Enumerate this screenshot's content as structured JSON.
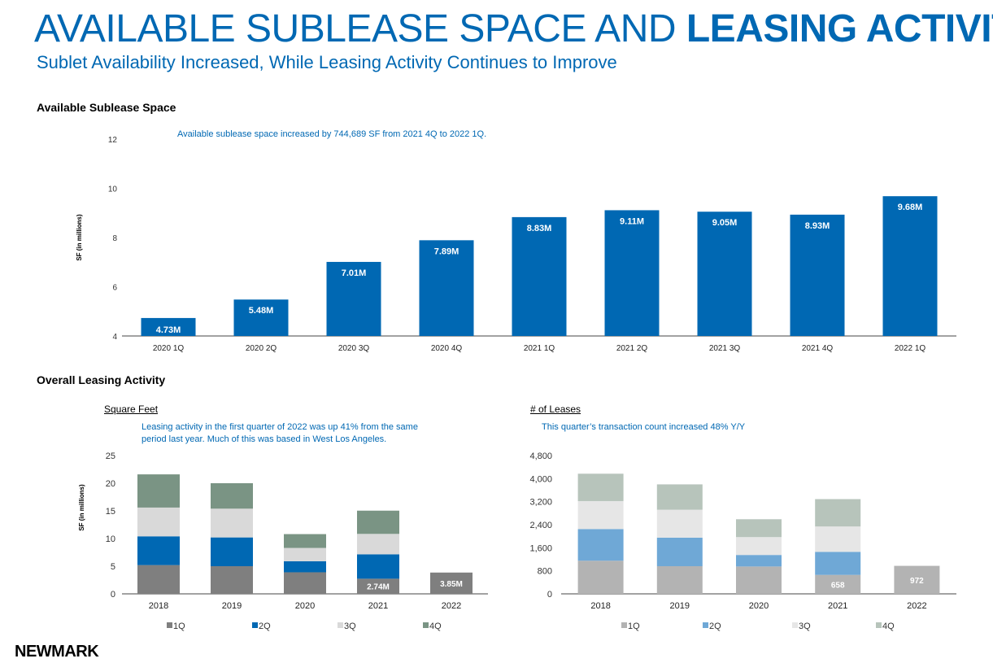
{
  "header": {
    "title_regular": "AVAILABLE SUBLEASE SPACE AND ",
    "title_bold": "LEASING ACTIVITY",
    "subtitle": "Sublet Availability Increased, While Leasing Activity Continues to Improve"
  },
  "sections": {
    "sublease_title": "Available Sublease Space",
    "leasing_title": "Overall Leasing Activity",
    "sqft_label": "Square Feet",
    "leases_label": "# of Leases"
  },
  "notes": {
    "sublease": "Available sublease space increased by 744,689 SF from 2021 4Q to 2022 1Q.",
    "sqft": "Leasing activity in the first quarter of 2022 was up 41% from the same period last year. Much of this was based in West Los Angeles.",
    "leases": "This quarter’s transaction count increased 48% Y/Y"
  },
  "logo": "NEWMARK",
  "chart_data": [
    {
      "type": "bar",
      "id": "sublease",
      "title": "Available Sublease Space",
      "ylabel": "SF (in millions)",
      "ylim": [
        4,
        12
      ],
      "yticks": [
        4,
        6,
        8,
        10,
        12
      ],
      "ytick_labels": [
        "4",
        "6",
        "8",
        "10",
        "12"
      ],
      "categories": [
        "2020 1Q",
        "2020 2Q",
        "2020 3Q",
        "2020 4Q",
        "2021 1Q",
        "2021 2Q",
        "2021 3Q",
        "2021 4Q",
        "2022 1Q"
      ],
      "values": [
        4.73,
        5.48,
        7.01,
        7.89,
        8.83,
        9.11,
        9.05,
        8.93,
        9.68
      ],
      "data_labels": [
        "4.73M",
        "5.48M",
        "7.01M",
        "7.89M",
        "8.83M",
        "9.11M",
        "9.05M",
        "8.93M",
        "9.68M"
      ],
      "color": "#0068b3",
      "grid": false
    },
    {
      "type": "bar",
      "stacked": true,
      "id": "sqft",
      "title": "Square Feet",
      "ylabel": "SF (in millions)",
      "ylim": [
        0,
        25
      ],
      "yticks": [
        0,
        5,
        10,
        15,
        20,
        25
      ],
      "ytick_labels": [
        "0",
        "5",
        "10",
        "15",
        "20",
        "25"
      ],
      "categories": [
        "2018",
        "2019",
        "2020",
        "2021",
        "2022"
      ],
      "series": [
        {
          "name": "1Q",
          "color": "#7f7f7f",
          "values": [
            5.2,
            5.0,
            3.9,
            2.74,
            3.85
          ]
        },
        {
          "name": "2Q",
          "color": "#0068b3",
          "values": [
            5.2,
            5.2,
            2.0,
            4.4,
            0
          ]
        },
        {
          "name": "3Q",
          "color": "#d9d9d9",
          "values": [
            5.2,
            5.2,
            2.4,
            3.7,
            0
          ]
        },
        {
          "name": "4Q",
          "color": "#7a9484",
          "values": [
            6.0,
            4.6,
            2.5,
            4.2,
            0
          ]
        }
      ],
      "data_labels": [
        {
          "category": 3,
          "series": 0,
          "text": "2.74M"
        },
        {
          "category": 4,
          "series": 0,
          "text": "3.85M"
        }
      ],
      "legend_position": "bottom",
      "grid": false
    },
    {
      "type": "bar",
      "stacked": true,
      "id": "leases",
      "title": "# of Leases",
      "ylim": [
        0,
        4800
      ],
      "yticks": [
        0,
        800,
        1600,
        2400,
        3200,
        4000,
        4800
      ],
      "ytick_labels": [
        "0",
        "800",
        "1,600",
        "2,400",
        "3,200",
        "4,000",
        "4,800"
      ],
      "categories": [
        "2018",
        "2019",
        "2020",
        "2021",
        "2022"
      ],
      "series": [
        {
          "name": "1Q",
          "color": "#b3b3b3",
          "values": [
            1150,
            960,
            950,
            658,
            972
          ]
        },
        {
          "name": "2Q",
          "color": "#6fa8d6",
          "values": [
            1100,
            990,
            400,
            800,
            0
          ]
        },
        {
          "name": "3Q",
          "color": "#e6e6e6",
          "values": [
            970,
            970,
            620,
            880,
            0
          ]
        },
        {
          "name": "4Q",
          "color": "#b7c4bb",
          "values": [
            950,
            880,
            620,
            950,
            0
          ]
        }
      ],
      "data_labels": [
        {
          "category": 3,
          "series": 0,
          "text": "658"
        },
        {
          "category": 4,
          "series": 0,
          "text": "972"
        }
      ],
      "legend_position": "bottom",
      "grid": false
    }
  ]
}
